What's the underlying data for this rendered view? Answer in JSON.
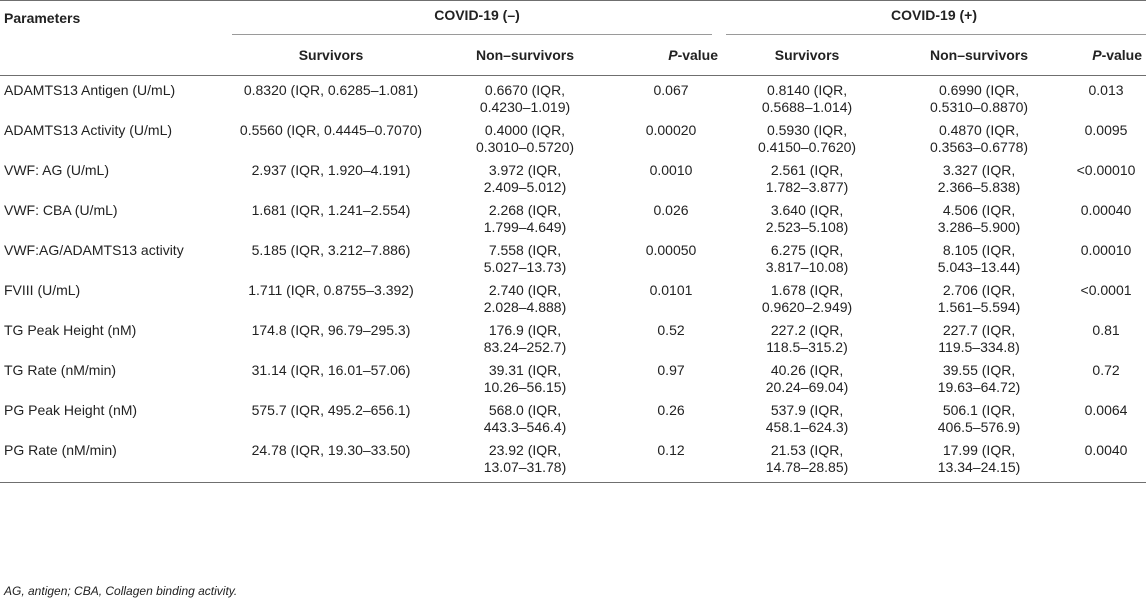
{
  "table": {
    "header": {
      "parameters": "Parameters",
      "group1": "COVID-19 (–)",
      "group2": "COVID-19 (+)",
      "survivors": "Survivors",
      "non_survivors": "Non–survivors",
      "p_italic": "P",
      "p_suffix": "-value"
    },
    "rows": [
      {
        "param": "ADAMTS13 Antigen (U/mL)",
        "neg_surv": "0.8320 (IQR, 0.6285–1.081)",
        "neg_nonsurv_1": "0.6670 (IQR,",
        "neg_nonsurv_2": "0.4230–1.019)",
        "neg_p": "0.067",
        "pos_surv_1": "0.8140 (IQR,",
        "pos_surv_2": "0.5688–1.014)",
        "pos_nonsurv_1": "0.6990 (IQR,",
        "pos_nonsurv_2": "0.5310–0.8870)",
        "pos_p": "0.013"
      },
      {
        "param": "ADAMTS13 Activity (U/mL)",
        "neg_surv": "0.5560 (IQR, 0.4445–0.7070)",
        "neg_nonsurv_1": "0.4000 (IQR,",
        "neg_nonsurv_2": "0.3010–0.5720)",
        "neg_p": "0.00020",
        "pos_surv_1": "0.5930 (IQR,",
        "pos_surv_2": "0.4150–0.7620)",
        "pos_nonsurv_1": "0.4870 (IQR,",
        "pos_nonsurv_2": "0.3563–0.6778)",
        "pos_p": "0.0095"
      },
      {
        "param": "VWF: AG (U/mL)",
        "neg_surv": "2.937 (IQR, 1.920–4.191)",
        "neg_nonsurv_1": "3.972 (IQR,",
        "neg_nonsurv_2": "2.409–5.012)",
        "neg_p": "0.0010",
        "pos_surv_1": "2.561 (IQR,",
        "pos_surv_2": "1.782–3.877)",
        "pos_nonsurv_1": "3.327 (IQR,",
        "pos_nonsurv_2": "2.366–5.838)",
        "pos_p": "<0.00010"
      },
      {
        "param": "VWF: CBA (U/mL)",
        "neg_surv": "1.681 (IQR, 1.241–2.554)",
        "neg_nonsurv_1": "2.268 (IQR,",
        "neg_nonsurv_2": "1.799–4.649)",
        "neg_p": "0.026",
        "pos_surv_1": "3.640 (IQR,",
        "pos_surv_2": "2.523–5.108)",
        "pos_nonsurv_1": "4.506 (IQR,",
        "pos_nonsurv_2": "3.286–5.900)",
        "pos_p": "0.00040"
      },
      {
        "param": "VWF:AG/ADAMTS13 activity",
        "neg_surv": "5.185 (IQR, 3.212–7.886)",
        "neg_nonsurv_1": "7.558 (IQR,",
        "neg_nonsurv_2": "5.027–13.73)",
        "neg_p": "0.00050",
        "pos_surv_1": "6.275 (IQR,",
        "pos_surv_2": "3.817–10.08)",
        "pos_nonsurv_1": "8.105 (IQR,",
        "pos_nonsurv_2": "5.043–13.44)",
        "pos_p": "0.00010"
      },
      {
        "param": "FVIII (U/mL)",
        "neg_surv": "1.711 (IQR, 0.8755–3.392)",
        "neg_nonsurv_1": "2.740 (IQR,",
        "neg_nonsurv_2": "2.028–4.888)",
        "neg_p": "0.0101",
        "pos_surv_1": "1.678 (IQR,",
        "pos_surv_2": "0.9620–2.949)",
        "pos_nonsurv_1": "2.706 (IQR,",
        "pos_nonsurv_2": "1.561–5.594)",
        "pos_p": "<0.0001"
      },
      {
        "param": "TG Peak Height (nM)",
        "neg_surv": "174.8 (IQR, 96.79–295.3)",
        "neg_nonsurv_1": "176.9 (IQR,",
        "neg_nonsurv_2": "83.24–252.7)",
        "neg_p": "0.52",
        "pos_surv_1": "227.2 (IQR,",
        "pos_surv_2": "118.5–315.2)",
        "pos_nonsurv_1": "227.7 (IQR,",
        "pos_nonsurv_2": "119.5–334.8)",
        "pos_p": "0.81"
      },
      {
        "param": "TG Rate (nM/min)",
        "neg_surv": "31.14 (IQR, 16.01–57.06)",
        "neg_nonsurv_1": "39.31 (IQR,",
        "neg_nonsurv_2": "10.26–56.15)",
        "neg_p": "0.97",
        "pos_surv_1": "40.26 (IQR,",
        "pos_surv_2": "20.24–69.04)",
        "pos_nonsurv_1": "39.55 (IQR,",
        "pos_nonsurv_2": "19.63–64.72)",
        "pos_p": "0.72"
      },
      {
        "param": "PG Peak Height (nM)",
        "neg_surv": "575.7 (IQR, 495.2–656.1)",
        "neg_nonsurv_1": "568.0 (IQR,",
        "neg_nonsurv_2": "443.3–546.4)",
        "neg_p": "0.26",
        "pos_surv_1": "537.9 (IQR,",
        "pos_surv_2": "458.1–624.3)",
        "pos_nonsurv_1": "506.1 (IQR,",
        "pos_nonsurv_2": "406.5–576.9)",
        "pos_p": "0.0064"
      },
      {
        "param": "PG Rate (nM/min)",
        "neg_surv": "24.78 (IQR, 19.30–33.50)",
        "neg_nonsurv_1": "23.92 (IQR,",
        "neg_nonsurv_2": "13.07–31.78)",
        "neg_p": "0.12",
        "pos_surv_1": "21.53 (IQR,",
        "pos_surv_2": "14.78–28.85)",
        "pos_nonsurv_1": "17.99 (IQR,",
        "pos_nonsurv_2": "13.34–24.15)",
        "pos_p": "0.0040"
      }
    ],
    "footnote": "AG, antigen; CBA, Collagen binding activity."
  }
}
